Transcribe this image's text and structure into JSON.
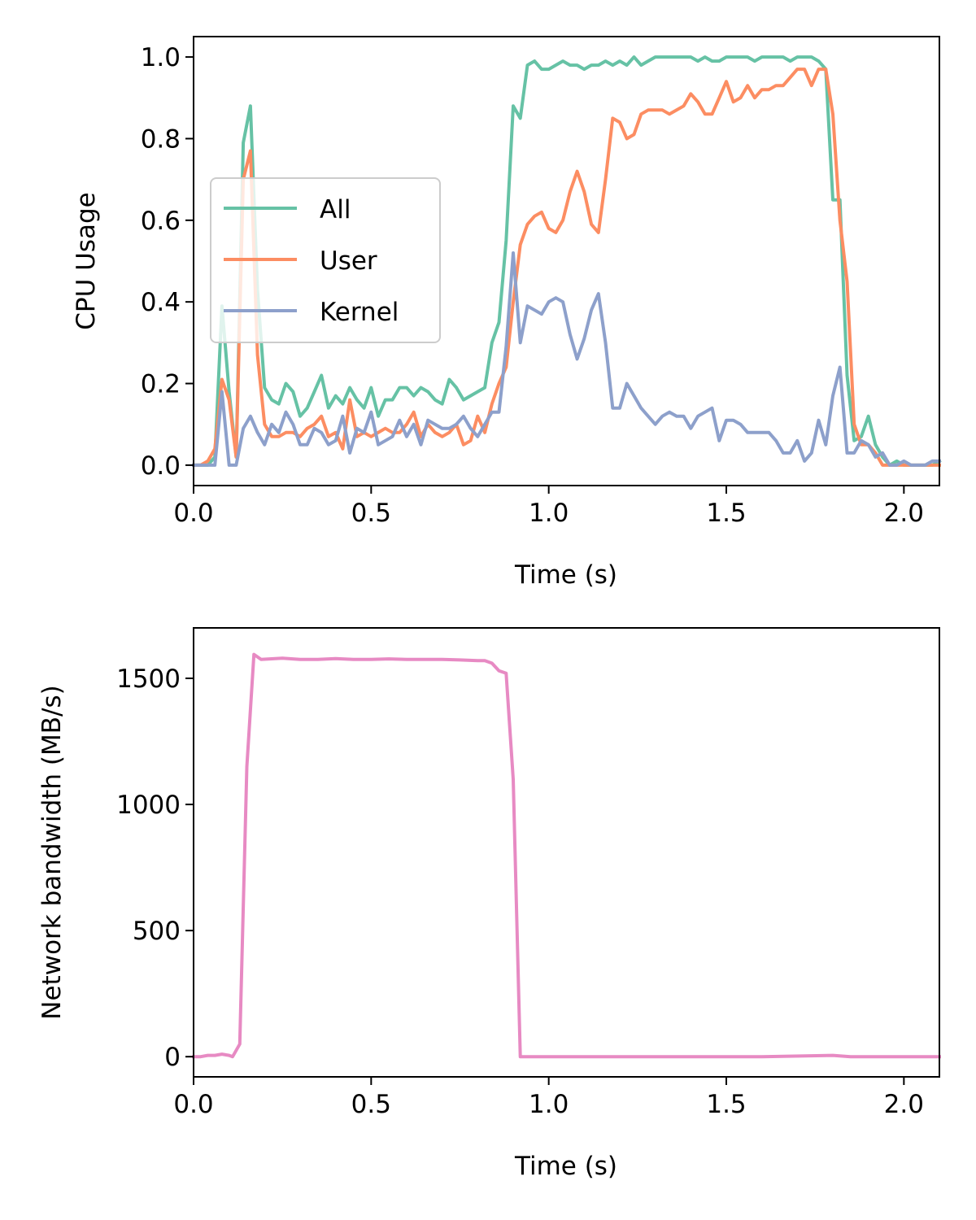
{
  "colors": {
    "all": "#66c2a5",
    "user": "#fc8d62",
    "kernel": "#8da0cb",
    "network": "#e78ac3"
  },
  "chart_data": [
    {
      "type": "line",
      "xlabel": "Time (s)",
      "ylabel": "CPU Usage",
      "xlim": [
        0,
        2.1
      ],
      "ylim": [
        -0.05,
        1.05
      ],
      "xticks": [
        0.0,
        0.5,
        1.0,
        1.5,
        2.0
      ],
      "xtick_labels": [
        "0.0",
        "0.5",
        "1.0",
        "1.5",
        "2.0"
      ],
      "yticks": [
        0.0,
        0.2,
        0.4,
        0.6,
        0.8,
        1.0
      ],
      "ytick_labels": [
        "0.0",
        "0.2",
        "0.4",
        "0.6",
        "0.8",
        "1.0"
      ],
      "legend_position": "center-left",
      "series": [
        {
          "name": "All",
          "color_key": "all",
          "x": [
            0.0,
            0.02,
            0.04,
            0.06,
            0.08,
            0.1,
            0.12,
            0.14,
            0.16,
            0.18,
            0.2,
            0.22,
            0.24,
            0.26,
            0.28,
            0.3,
            0.32,
            0.34,
            0.36,
            0.38,
            0.4,
            0.42,
            0.44,
            0.46,
            0.48,
            0.5,
            0.52,
            0.54,
            0.56,
            0.58,
            0.6,
            0.62,
            0.64,
            0.66,
            0.68,
            0.7,
            0.72,
            0.74,
            0.76,
            0.78,
            0.8,
            0.82,
            0.84,
            0.86,
            0.88,
            0.9,
            0.92,
            0.94,
            0.96,
            0.98,
            1.0,
            1.02,
            1.04,
            1.06,
            1.08,
            1.1,
            1.12,
            1.14,
            1.16,
            1.18,
            1.2,
            1.22,
            1.24,
            1.26,
            1.28,
            1.3,
            1.32,
            1.34,
            1.36,
            1.38,
            1.4,
            1.42,
            1.44,
            1.46,
            1.48,
            1.5,
            1.52,
            1.54,
            1.56,
            1.58,
            1.6,
            1.62,
            1.64,
            1.66,
            1.68,
            1.7,
            1.72,
            1.74,
            1.76,
            1.78,
            1.8,
            1.82,
            1.84,
            1.86,
            1.88,
            1.9,
            1.92,
            1.94,
            1.96,
            1.98,
            2.0,
            2.02,
            2.04,
            2.06,
            2.08,
            2.1
          ],
          "y": [
            0.0,
            0.0,
            0.0,
            0.02,
            0.39,
            0.18,
            0.02,
            0.79,
            0.88,
            0.43,
            0.19,
            0.16,
            0.15,
            0.2,
            0.18,
            0.12,
            0.14,
            0.18,
            0.22,
            0.14,
            0.17,
            0.15,
            0.19,
            0.16,
            0.14,
            0.19,
            0.12,
            0.16,
            0.16,
            0.19,
            0.19,
            0.17,
            0.19,
            0.18,
            0.16,
            0.15,
            0.21,
            0.19,
            0.16,
            0.17,
            0.18,
            0.19,
            0.3,
            0.35,
            0.55,
            0.88,
            0.85,
            0.98,
            0.99,
            0.97,
            0.97,
            0.98,
            0.99,
            0.98,
            0.98,
            0.97,
            0.98,
            0.98,
            0.99,
            0.98,
            0.99,
            0.98,
            1.0,
            0.98,
            0.99,
            1.0,
            1.0,
            1.0,
            1.0,
            1.0,
            1.0,
            0.99,
            1.0,
            0.99,
            0.99,
            1.0,
            1.0,
            1.0,
            1.0,
            0.99,
            1.0,
            1.0,
            1.0,
            1.0,
            0.99,
            1.0,
            1.0,
            1.0,
            0.99,
            0.97,
            0.65,
            0.65,
            0.22,
            0.06,
            0.07,
            0.12,
            0.05,
            0.02,
            0.0,
            0.01,
            0.0,
            0.0,
            0.0,
            0.0,
            0.0,
            0.01
          ]
        },
        {
          "name": "User",
          "color_key": "user",
          "x": [
            0.0,
            0.02,
            0.04,
            0.06,
            0.08,
            0.1,
            0.12,
            0.14,
            0.16,
            0.18,
            0.2,
            0.22,
            0.24,
            0.26,
            0.28,
            0.3,
            0.32,
            0.34,
            0.36,
            0.38,
            0.4,
            0.42,
            0.44,
            0.46,
            0.48,
            0.5,
            0.52,
            0.54,
            0.56,
            0.58,
            0.6,
            0.62,
            0.64,
            0.66,
            0.68,
            0.7,
            0.72,
            0.74,
            0.76,
            0.78,
            0.8,
            0.82,
            0.84,
            0.86,
            0.88,
            0.9,
            0.92,
            0.94,
            0.96,
            0.98,
            1.0,
            1.02,
            1.04,
            1.06,
            1.08,
            1.1,
            1.12,
            1.14,
            1.16,
            1.18,
            1.2,
            1.22,
            1.24,
            1.26,
            1.28,
            1.3,
            1.32,
            1.34,
            1.36,
            1.38,
            1.4,
            1.42,
            1.44,
            1.46,
            1.48,
            1.5,
            1.52,
            1.54,
            1.56,
            1.58,
            1.6,
            1.62,
            1.64,
            1.66,
            1.68,
            1.7,
            1.72,
            1.74,
            1.76,
            1.78,
            1.8,
            1.82,
            1.84,
            1.86,
            1.88,
            1.9,
            1.92,
            1.94,
            1.96,
            1.98,
            2.0,
            2.02,
            2.04,
            2.06,
            2.08,
            2.1
          ],
          "y": [
            0.0,
            0.0,
            0.01,
            0.04,
            0.21,
            0.16,
            0.02,
            0.7,
            0.77,
            0.27,
            0.1,
            0.07,
            0.07,
            0.08,
            0.08,
            0.07,
            0.09,
            0.1,
            0.12,
            0.07,
            0.08,
            0.04,
            0.16,
            0.07,
            0.08,
            0.07,
            0.08,
            0.09,
            0.08,
            0.08,
            0.1,
            0.13,
            0.07,
            0.1,
            0.08,
            0.07,
            0.08,
            0.1,
            0.05,
            0.06,
            0.12,
            0.08,
            0.15,
            0.2,
            0.24,
            0.4,
            0.54,
            0.59,
            0.61,
            0.62,
            0.58,
            0.57,
            0.6,
            0.67,
            0.72,
            0.67,
            0.59,
            0.57,
            0.7,
            0.85,
            0.84,
            0.8,
            0.81,
            0.86,
            0.87,
            0.87,
            0.87,
            0.86,
            0.87,
            0.88,
            0.91,
            0.89,
            0.86,
            0.86,
            0.9,
            0.94,
            0.89,
            0.9,
            0.93,
            0.9,
            0.92,
            0.92,
            0.93,
            0.93,
            0.95,
            0.97,
            0.97,
            0.93,
            0.97,
            0.97,
            0.86,
            0.6,
            0.45,
            0.1,
            0.05,
            0.05,
            0.03,
            0.0,
            0.0,
            0.0,
            0.0,
            0.0,
            0.0,
            0.0,
            0.0,
            0.0
          ]
        },
        {
          "name": "Kernel",
          "color_key": "kernel",
          "x": [
            0.0,
            0.02,
            0.04,
            0.06,
            0.08,
            0.1,
            0.12,
            0.14,
            0.16,
            0.18,
            0.2,
            0.22,
            0.24,
            0.26,
            0.28,
            0.3,
            0.32,
            0.34,
            0.36,
            0.38,
            0.4,
            0.42,
            0.44,
            0.46,
            0.48,
            0.5,
            0.52,
            0.54,
            0.56,
            0.58,
            0.6,
            0.62,
            0.64,
            0.66,
            0.68,
            0.7,
            0.72,
            0.74,
            0.76,
            0.78,
            0.8,
            0.82,
            0.84,
            0.86,
            0.88,
            0.9,
            0.92,
            0.94,
            0.96,
            0.98,
            1.0,
            1.02,
            1.04,
            1.06,
            1.08,
            1.1,
            1.12,
            1.14,
            1.16,
            1.18,
            1.2,
            1.22,
            1.24,
            1.26,
            1.28,
            1.3,
            1.32,
            1.34,
            1.36,
            1.38,
            1.4,
            1.42,
            1.44,
            1.46,
            1.48,
            1.5,
            1.52,
            1.54,
            1.56,
            1.58,
            1.6,
            1.62,
            1.64,
            1.66,
            1.68,
            1.7,
            1.72,
            1.74,
            1.76,
            1.78,
            1.8,
            1.82,
            1.84,
            1.86,
            1.88,
            1.9,
            1.92,
            1.94,
            1.96,
            1.98,
            2.0,
            2.02,
            2.04,
            2.06,
            2.08,
            2.1
          ],
          "y": [
            0.0,
            0.0,
            0.0,
            0.0,
            0.18,
            0.0,
            0.0,
            0.09,
            0.12,
            0.08,
            0.05,
            0.1,
            0.08,
            0.13,
            0.1,
            0.05,
            0.05,
            0.09,
            0.08,
            0.05,
            0.06,
            0.12,
            0.03,
            0.09,
            0.08,
            0.13,
            0.05,
            0.06,
            0.07,
            0.11,
            0.07,
            0.1,
            0.05,
            0.11,
            0.1,
            0.09,
            0.09,
            0.1,
            0.12,
            0.09,
            0.07,
            0.1,
            0.13,
            0.13,
            0.29,
            0.52,
            0.3,
            0.39,
            0.38,
            0.37,
            0.4,
            0.41,
            0.4,
            0.32,
            0.26,
            0.31,
            0.38,
            0.42,
            0.3,
            0.14,
            0.14,
            0.2,
            0.17,
            0.14,
            0.12,
            0.1,
            0.12,
            0.13,
            0.12,
            0.12,
            0.09,
            0.12,
            0.13,
            0.14,
            0.06,
            0.11,
            0.11,
            0.1,
            0.08,
            0.08,
            0.08,
            0.08,
            0.06,
            0.03,
            0.03,
            0.06,
            0.01,
            0.03,
            0.11,
            0.05,
            0.17,
            0.24,
            0.03,
            0.03,
            0.06,
            0.05,
            0.02,
            0.03,
            0.0,
            0.0,
            0.01,
            0.0,
            0.0,
            0.0,
            0.01,
            0.01
          ]
        }
      ]
    },
    {
      "type": "line",
      "xlabel": "Time (s)",
      "ylabel": "Network bandwidth (MB/s)",
      "xlim": [
        0,
        2.1
      ],
      "ylim": [
        -80,
        1700
      ],
      "xticks": [
        0.0,
        0.5,
        1.0,
        1.5,
        2.0
      ],
      "xtick_labels": [
        "0.0",
        "0.5",
        "1.0",
        "1.5",
        "2.0"
      ],
      "yticks": [
        0,
        500,
        1000,
        1500
      ],
      "ytick_labels": [
        "0",
        "500",
        "1000",
        "1500"
      ],
      "series": [
        {
          "name": "Network",
          "color_key": "network",
          "x": [
            0.0,
            0.02,
            0.04,
            0.06,
            0.08,
            0.1,
            0.11,
            0.13,
            0.15,
            0.17,
            0.19,
            0.25,
            0.3,
            0.35,
            0.4,
            0.45,
            0.5,
            0.55,
            0.6,
            0.65,
            0.7,
            0.75,
            0.8,
            0.82,
            0.84,
            0.86,
            0.88,
            0.9,
            0.92,
            0.95,
            1.0,
            1.2,
            1.4,
            1.6,
            1.8,
            1.85,
            1.9,
            2.0,
            2.1
          ],
          "y": [
            0,
            0,
            5,
            5,
            10,
            5,
            0,
            50,
            1150,
            1595,
            1575,
            1580,
            1575,
            1575,
            1578,
            1575,
            1575,
            1577,
            1575,
            1575,
            1575,
            1573,
            1570,
            1570,
            1560,
            1530,
            1520,
            1100,
            0,
            0,
            0,
            0,
            0,
            0,
            5,
            0,
            0,
            0,
            0
          ]
        }
      ]
    }
  ]
}
